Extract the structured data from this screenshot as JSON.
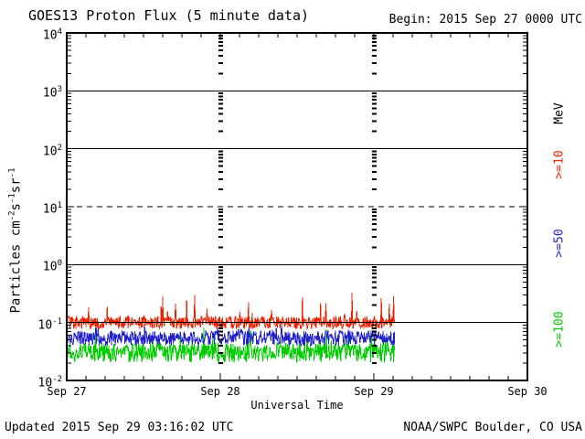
{
  "header": {
    "title": "GOES13 Proton Flux (5 minute data)",
    "begin": "Begin: 2015 Sep 27 0000 UTC"
  },
  "x_axis": {
    "title": "Universal Time",
    "tick_labels": [
      "Sep 27",
      "Sep 28",
      "Sep 29",
      "Sep 30"
    ]
  },
  "y_axis": {
    "tick_base": "10",
    "tick_exponents": [
      4,
      3,
      2,
      1,
      0,
      -1,
      -2
    ],
    "title_parts": [
      {
        "t": "Particles  cm",
        "sup": false
      },
      {
        "t": "-2",
        "sup": true
      },
      {
        "t": "s",
        "sup": false
      },
      {
        "t": "-1",
        "sup": true
      },
      {
        "t": "sr",
        "sup": false
      },
      {
        "t": "-1",
        "sup": true
      }
    ]
  },
  "legend": {
    "unit": "MeV",
    "items": [
      {
        "label": ">=10",
        "color": "#ee2200"
      },
      {
        "label": ">=50",
        "color": "#2222cc"
      },
      {
        "label": ">=100",
        "color": "#00cc00"
      }
    ]
  },
  "footer": {
    "updated": "Updated 2015 Sep 29 03:16:02 UTC",
    "credit": "NOAA/SWPC Boulder, CO USA"
  },
  "chart_data": {
    "type": "line",
    "title": "GOES13 Proton Flux (5 minute data)",
    "xlabel": "Universal Time",
    "ylabel": "Particles cm-2 s-1 sr-1",
    "y_scale": "log10",
    "ylim_log": [
      -2,
      4
    ],
    "x_days": 3,
    "x_tick_days": [
      0,
      1,
      2,
      3
    ],
    "minor_x_hours": 3,
    "grid": {
      "solid_decades": [
        3,
        2,
        0,
        -1
      ],
      "dashed_decades": [
        1
      ],
      "day_gridline_days": [
        1,
        2
      ]
    },
    "data_start": "2015 Sep 27 0000 UTC",
    "data_end_day_fraction": 2.135,
    "points_per_day": 288,
    "seed": 20150929,
    "series": [
      {
        "name": ">=10 MeV",
        "color": "#ee2200",
        "approx_mean_flux": 0.1,
        "approx_range": [
          0.07,
          0.3
        ],
        "log_base": -1.0,
        "log_jitter": 0.11,
        "spike_prob": 0.06,
        "spike_max": 0.45
      },
      {
        "name": ">=50 MeV",
        "color": "#2222cc",
        "approx_mean_flux": 0.055,
        "approx_range": [
          0.035,
          0.13
        ],
        "log_base": -1.27,
        "log_jitter": 0.13,
        "spike_prob": 0.06,
        "spike_max": 0.25
      },
      {
        "name": ">=100 MeV",
        "color": "#00cc00",
        "approx_mean_flux": 0.03,
        "approx_range": [
          0.015,
          0.08
        ],
        "log_base": -1.52,
        "log_jitter": 0.17,
        "spike_prob": 0.05,
        "spike_max": 0.3
      }
    ]
  }
}
